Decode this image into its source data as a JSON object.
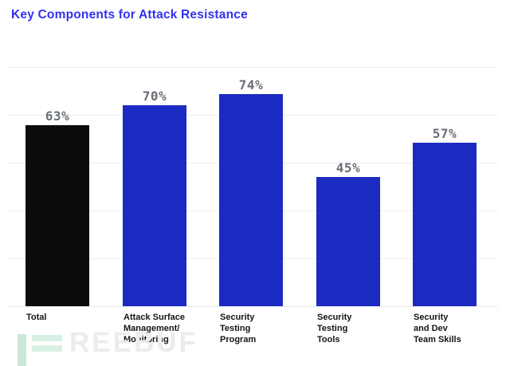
{
  "title": {
    "text": "Key Components for Attack Resistance",
    "color": "#3231ee"
  },
  "chart_data": {
    "type": "bar",
    "title": "Key Components for Attack Resistance",
    "categories": [
      "Total",
      "Attack Surface Management/ Monitoring",
      "Security Testing Program",
      "Security Testing Tools",
      "Security and Dev Team Skills"
    ],
    "category_lines": [
      [
        "Total"
      ],
      [
        "Attack Surface",
        "Management/",
        "Monitoring"
      ],
      [
        "Security",
        "Testing",
        "Program"
      ],
      [
        "Security",
        "Testing",
        "Tools"
      ],
      [
        "Security",
        "and Dev",
        "Team Skills"
      ]
    ],
    "values": [
      63,
      70,
      74,
      45,
      57
    ],
    "value_labels": [
      "63%",
      "70%",
      "74%",
      "45%",
      "57%"
    ],
    "bar_colors": [
      "#0c0c0e",
      "#1b2ac1",
      "#1b2ac1",
      "#1b2ac1",
      "#1b2ac1"
    ],
    "value_label_color": "#6a6e76",
    "category_label_color": "#141518",
    "xlabel": "",
    "ylabel": "",
    "ylim": [
      0,
      100
    ],
    "grid": true,
    "grid_divisions": 6,
    "grid_color": "#ececec",
    "baseline_color": "#e7e7e7",
    "legend": "none"
  },
  "watermark": {
    "text": "REEBUF",
    "icon_vbar_color": "#c9e8d9",
    "icon_eq_color": "#d8efe4",
    "text_color": "#ececec"
  }
}
